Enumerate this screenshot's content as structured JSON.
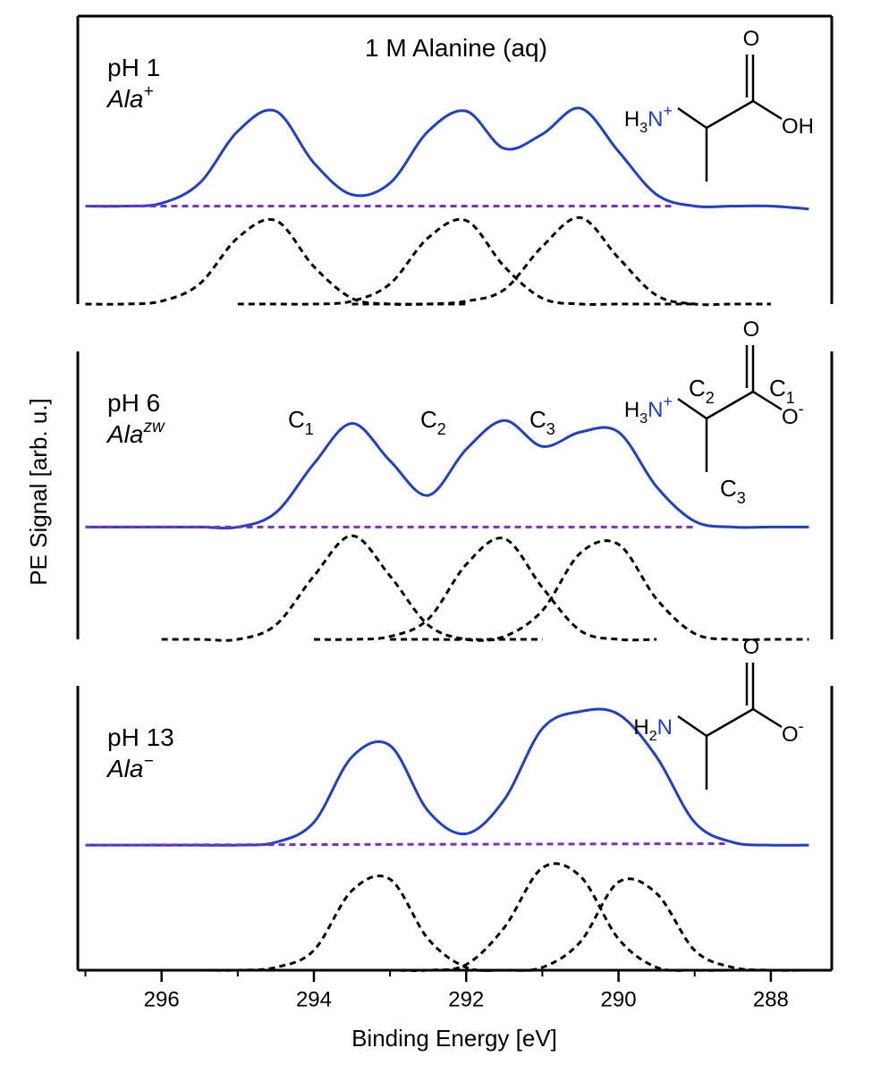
{
  "chart_data": [
    {
      "type": "line",
      "title": "1 M Alanine (aq)",
      "label": "pH 1",
      "species": {
        "name": "Ala",
        "charge": "+"
      },
      "structure": {
        "amine": {
          "h": "H",
          "count": "3",
          "n": "N",
          "charge": "+"
        },
        "carbonyl": "O",
        "oxygen": {
          "o": "OH"
        }
      },
      "xlim": [
        297.1,
        287.2
      ],
      "ylim": [
        0,
        1
      ],
      "x": [
        297,
        296.5,
        296,
        295.5,
        295,
        294.5,
        294,
        293.5,
        293,
        292.5,
        292,
        291.5,
        291,
        290.5,
        290,
        289.5,
        289,
        288.5,
        288,
        287.5
      ],
      "series": [
        {
          "color": "#1f3fcf",
          "style": "solid",
          "values": [
            0.34,
            0.34,
            0.35,
            0.42,
            0.6,
            0.67,
            0.49,
            0.38,
            0.42,
            0.6,
            0.67,
            0.54,
            0.59,
            0.68,
            0.53,
            0.38,
            0.34,
            0.34,
            0.34,
            0.33
          ]
        },
        {
          "color": "#000000",
          "style": "dashed",
          "values": [
            0,
            0,
            0.01,
            0.07,
            0.23,
            0.29,
            0.13,
            0.02,
            0,
            0,
            0,
            null,
            null,
            null,
            null,
            null,
            null,
            null,
            null,
            null
          ]
        },
        {
          "color": "#000000",
          "style": "dashed",
          "values": [
            null,
            null,
            null,
            null,
            0,
            0,
            0,
            0.01,
            0.07,
            0.23,
            0.29,
            0.13,
            0.02,
            0,
            0,
            0,
            0,
            null,
            null,
            null
          ]
        },
        {
          "color": "#000000",
          "style": "dashed",
          "values": [
            null,
            null,
            null,
            null,
            null,
            null,
            null,
            0,
            0,
            0,
            0.01,
            0.05,
            0.2,
            0.3,
            0.16,
            0.03,
            0,
            0,
            0,
            null
          ]
        },
        {
          "color": "#7b2fd3",
          "style": "dashed",
          "x": [
            297,
            289.3
          ],
          "values": [
            0.34,
            0.34
          ]
        }
      ]
    },
    {
      "type": "line",
      "label": "pH 6",
      "species": {
        "name": "Ala",
        "charge": "zw"
      },
      "ylabel": "PE Signal [arb. u.]",
      "peak_labels": [
        {
          "c": "C",
          "n": "1"
        },
        {
          "c": "C",
          "n": "2"
        },
        {
          "c": "C",
          "n": "3"
        }
      ],
      "structure": {
        "amine": {
          "h": "H",
          "count": "3",
          "n": "N",
          "charge": "+"
        },
        "carbonyl": "O",
        "oxygen": {
          "o": "O",
          "charge": "-"
        },
        "carbons": [
          {
            "c": "C",
            "n": "2"
          },
          {
            "c": "C",
            "n": "1"
          },
          {
            "c": "C",
            "n": "3"
          }
        ]
      },
      "xlim": [
        297.1,
        287.2
      ],
      "ylim": [
        0,
        1
      ],
      "x": [
        297,
        296.5,
        296,
        295.5,
        295,
        294.5,
        294,
        293.5,
        293,
        292.5,
        292,
        291.5,
        291,
        290.5,
        290,
        289.5,
        289,
        288.5,
        288,
        287.5
      ],
      "series": [
        {
          "color": "#1f3fcf",
          "style": "solid",
          "values": [
            0.39,
            0.39,
            0.39,
            0.39,
            0.39,
            0.44,
            0.61,
            0.75,
            0.62,
            0.5,
            0.66,
            0.76,
            0.67,
            0.72,
            0.72,
            0.53,
            0.41,
            0.39,
            0.39,
            0.39
          ]
        },
        {
          "color": "#000000",
          "style": "dashed",
          "values": [
            null,
            null,
            0,
            0,
            0,
            0.05,
            0.22,
            0.36,
            0.22,
            0.05,
            0,
            0,
            0,
            null,
            null,
            null,
            null,
            null,
            null,
            null
          ]
        },
        {
          "color": "#000000",
          "style": "dashed",
          "values": [
            null,
            null,
            null,
            null,
            null,
            null,
            0,
            0,
            0.01,
            0.07,
            0.26,
            0.35,
            0.18,
            0.03,
            0,
            0,
            null,
            null,
            null,
            null
          ]
        },
        {
          "color": "#000000",
          "style": "dashed",
          "values": [
            null,
            null,
            null,
            null,
            null,
            null,
            null,
            null,
            0,
            0,
            0,
            0.01,
            0.1,
            0.3,
            0.33,
            0.14,
            0.02,
            0,
            0,
            0
          ]
        },
        {
          "color": "#7b2fd3",
          "style": "dashed",
          "x": [
            297,
            289
          ],
          "values": [
            0.39,
            0.39
          ]
        }
      ]
    },
    {
      "type": "line",
      "label": "pH 13",
      "species": {
        "name": "Ala",
        "charge": "−"
      },
      "xlabel": "Binding Energy [eV]",
      "structure": {
        "amine": {
          "h": "H",
          "count": "2",
          "n": "N"
        },
        "carbonyl": "O",
        "oxygen": {
          "o": "O",
          "charge": "-"
        }
      },
      "xlim": [
        297.1,
        287.2
      ],
      "ylim": [
        0,
        1
      ],
      "xticks": [
        296,
        294,
        292,
        290,
        288
      ],
      "xminor": [
        297,
        295,
        293,
        291,
        289
      ],
      "x": [
        297,
        296.5,
        296,
        295.5,
        295,
        294.5,
        294,
        293.5,
        293,
        292.5,
        292,
        291.5,
        291,
        290.5,
        290,
        289.5,
        289,
        288.5,
        288,
        287.5
      ],
      "series": [
        {
          "color": "#1f3fcf",
          "style": "solid",
          "values": [
            0.44,
            0.44,
            0.44,
            0.44,
            0.44,
            0.45,
            0.52,
            0.75,
            0.79,
            0.56,
            0.48,
            0.6,
            0.85,
            0.91,
            0.9,
            0.75,
            0.52,
            0.45,
            0.44,
            0.44
          ]
        },
        {
          "color": "#000000",
          "style": "dashed",
          "values": [
            null,
            null,
            0,
            0,
            0,
            0.01,
            0.07,
            0.28,
            0.32,
            0.11,
            0.01,
            0,
            0,
            null,
            null,
            null,
            null,
            null,
            null,
            null
          ]
        },
        {
          "color": "#000000",
          "style": "dashed",
          "values": [
            null,
            null,
            null,
            null,
            null,
            null,
            0,
            0,
            0,
            0,
            0.02,
            0.15,
            0.36,
            0.33,
            0.11,
            0.01,
            0,
            0,
            null,
            null
          ]
        },
        {
          "color": "#000000",
          "style": "dashed",
          "values": [
            null,
            null,
            null,
            null,
            null,
            null,
            null,
            null,
            null,
            null,
            0,
            0,
            0.01,
            0.1,
            0.31,
            0.27,
            0.07,
            0.01,
            0,
            0
          ]
        },
        {
          "color": "#7b2fd3",
          "style": "dashed",
          "x": [
            297,
            288.6
          ],
          "values": [
            0.44,
            0.445
          ]
        }
      ]
    }
  ]
}
